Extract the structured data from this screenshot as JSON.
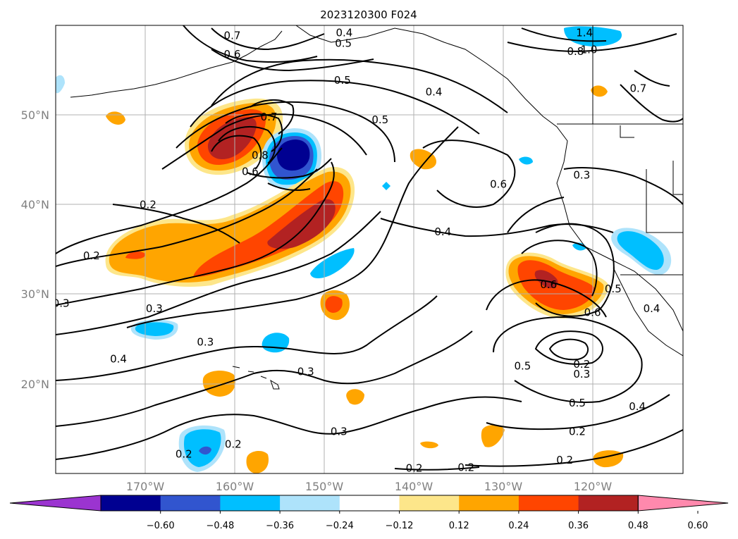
{
  "title": "2023120300 F024",
  "map": {
    "lat_ticks": [
      "50°N",
      "40°N",
      "30°N",
      "20°N"
    ],
    "lon_ticks": [
      "170°W",
      "160°W",
      "150°W",
      "140°W",
      "130°W",
      "120°W"
    ],
    "extent": {
      "lon_min": -180,
      "lon_max": -110,
      "lat_min": 10,
      "lat_max": 60
    },
    "grid": true
  },
  "colorbar": {
    "ticks": [
      "−0.60",
      "−0.48",
      "−0.36",
      "−0.24",
      "−0.12",
      "0.12",
      "0.24",
      "0.36",
      "0.48",
      "0.60"
    ],
    "colors": [
      "#9b34d0",
      "#000091",
      "#3155cf",
      "#00bfff",
      "#aee3fb",
      "#ffffff",
      "#fde68a",
      "#ffa500",
      "#ff4500",
      "#b22222",
      "#ff89ad"
    ],
    "extend": "both"
  },
  "contour_labels": [
    {
      "text": "0.4",
      "lon": -147.8,
      "lat": 59.1
    },
    {
      "text": "0.5",
      "lon": -147.9,
      "lat": 57.9
    },
    {
      "text": "0.6",
      "lon": -160.3,
      "lat": 56.7
    },
    {
      "text": "0.7",
      "lon": -160.3,
      "lat": 58.8
    },
    {
      "text": "0.5",
      "lon": -148.0,
      "lat": 53.8
    },
    {
      "text": "0.4",
      "lon": -137.8,
      "lat": 52.5
    },
    {
      "text": "0.5",
      "lon": -143.8,
      "lat": 49.4
    },
    {
      "text": "0.7",
      "lon": -156.2,
      "lat": 49.7
    },
    {
      "text": "0.8",
      "lon": -157.2,
      "lat": 45.4
    },
    {
      "text": "0.6",
      "lon": -158.3,
      "lat": 43.6
    },
    {
      "text": "0.6",
      "lon": -130.6,
      "lat": 42.2
    },
    {
      "text": "0.3",
      "lon": -121.3,
      "lat": 43.2
    },
    {
      "text": "0.7",
      "lon": -115.0,
      "lat": 52.9
    },
    {
      "text": "1.4",
      "lon": -121.0,
      "lat": 59.1
    },
    {
      "text": "1.0",
      "lon": -120.5,
      "lat": 57.2
    },
    {
      "text": "0.8",
      "lon": -122.0,
      "lat": 57.0
    },
    {
      "text": "0.2",
      "lon": -169.7,
      "lat": 39.9
    },
    {
      "text": "0.2",
      "lon": -176.0,
      "lat": 34.2
    },
    {
      "text": "0.4",
      "lon": -136.8,
      "lat": 36.9
    },
    {
      "text": "0.3",
      "lon": -179.4,
      "lat": 28.9
    },
    {
      "text": "0.3",
      "lon": -169.0,
      "lat": 28.3
    },
    {
      "text": "0.4",
      "lon": -173.0,
      "lat": 22.7
    },
    {
      "text": "0.3",
      "lon": -163.3,
      "lat": 24.6
    },
    {
      "text": "0.3",
      "lon": -152.1,
      "lat": 21.3
    },
    {
      "text": "0.6",
      "lon": -125.0,
      "lat": 31.0
    },
    {
      "text": "0.6",
      "lon": -120.1,
      "lat": 27.9
    },
    {
      "text": "0.5",
      "lon": -117.8,
      "lat": 30.5
    },
    {
      "text": "0.4",
      "lon": -113.5,
      "lat": 28.3
    },
    {
      "text": "0.5",
      "lon": -127.9,
      "lat": 21.9
    },
    {
      "text": "0.2",
      "lon": -121.3,
      "lat": 22.1
    },
    {
      "text": "0.3",
      "lon": -121.3,
      "lat": 21.0
    },
    {
      "text": "0.5",
      "lon": -121.8,
      "lat": 17.8
    },
    {
      "text": "0.4",
      "lon": -115.1,
      "lat": 17.4
    },
    {
      "text": "0.3",
      "lon": -148.4,
      "lat": 14.6
    },
    {
      "text": "0.2",
      "lon": -160.2,
      "lat": 13.2
    },
    {
      "text": "0.2",
      "lon": -121.8,
      "lat": 14.6
    },
    {
      "text": "0.2",
      "lon": -165.7,
      "lat": 12.1
    },
    {
      "text": "0.2",
      "lon": -140.0,
      "lat": 10.5
    },
    {
      "text": "0.2",
      "lon": -134.2,
      "lat": 10.6
    },
    {
      "text": "0.2",
      "lon": -123.2,
      "lat": 11.4
    }
  ]
}
